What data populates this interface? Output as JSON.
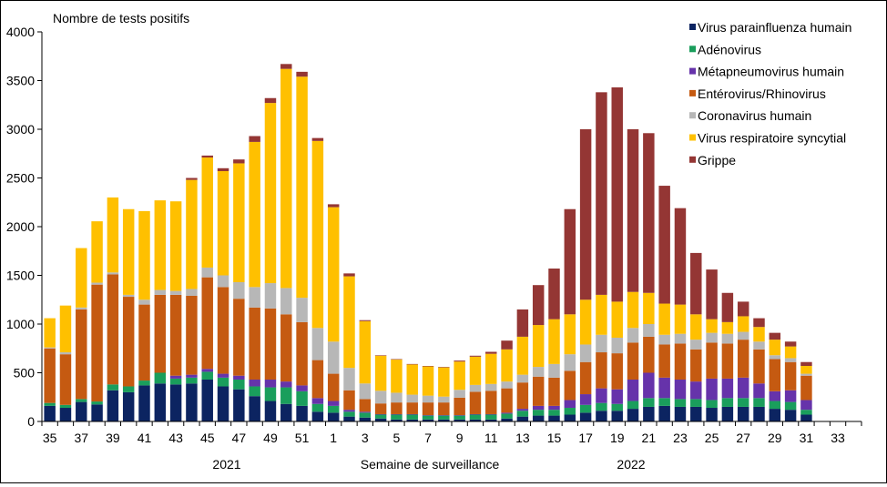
{
  "chart_data": {
    "type": "bar",
    "stacked": true,
    "title": "",
    "ylabel": "Nombre de tests positifs",
    "xlabel": "Semaine de surveillance",
    "year_labels": [
      "2021",
      "2022"
    ],
    "ylim": [
      0,
      4000
    ],
    "y_ticks": [
      0,
      500,
      1000,
      1500,
      2000,
      2500,
      3000,
      3500,
      4000
    ],
    "legend_position": "top-right",
    "grid": false,
    "categories": [
      "35",
      "36",
      "37",
      "38",
      "39",
      "40",
      "41",
      "42",
      "43",
      "44",
      "45",
      "46",
      "47",
      "48",
      "49",
      "50",
      "51",
      "52",
      "1",
      "2",
      "3",
      "4",
      "5",
      "6",
      "7",
      "8",
      "9",
      "10",
      "11",
      "12",
      "13",
      "14",
      "15",
      "16",
      "17",
      "18",
      "19",
      "20",
      "21",
      "22",
      "23",
      "24",
      "25",
      "26",
      "27",
      "28",
      "29",
      "30",
      "31",
      "32",
      "33",
      "34"
    ],
    "x_tick_labels": [
      "35",
      "37",
      "39",
      "41",
      "43",
      "45",
      "47",
      "49",
      "51",
      "1",
      "3",
      "5",
      "7",
      "9",
      "11",
      "13",
      "15",
      "17",
      "19",
      "21",
      "23",
      "25",
      "27",
      "29",
      "31",
      "33"
    ],
    "series": [
      {
        "name": "Virus parainfluenza humain",
        "color": "#0c2461",
        "values": [
          160,
          140,
          200,
          175,
          320,
          300,
          370,
          390,
          380,
          390,
          430,
          360,
          330,
          260,
          210,
          180,
          160,
          100,
          90,
          50,
          40,
          30,
          20,
          20,
          20,
          20,
          20,
          20,
          20,
          30,
          50,
          60,
          60,
          70,
          90,
          110,
          110,
          130,
          150,
          160,
          150,
          150,
          140,
          150,
          150,
          150,
          130,
          120,
          70,
          0,
          0,
          0
        ]
      },
      {
        "name": "Adénovirus",
        "color": "#1a9e5c",
        "values": [
          30,
          30,
          30,
          30,
          60,
          60,
          50,
          110,
          60,
          60,
          80,
          90,
          100,
          100,
          140,
          170,
          150,
          80,
          70,
          50,
          50,
          40,
          50,
          50,
          40,
          40,
          40,
          50,
          50,
          50,
          60,
          60,
          60,
          70,
          80,
          80,
          70,
          80,
          90,
          80,
          80,
          80,
          80,
          90,
          90,
          90,
          80,
          80,
          50,
          0,
          0,
          0
        ]
      },
      {
        "name": "Métapneumovirus humain",
        "color": "#6633aa",
        "values": [
          0,
          0,
          0,
          0,
          0,
          0,
          0,
          0,
          30,
          30,
          30,
          40,
          40,
          70,
          80,
          60,
          60,
          60,
          50,
          20,
          10,
          5,
          5,
          5,
          5,
          5,
          5,
          5,
          5,
          10,
          20,
          40,
          40,
          80,
          110,
          150,
          150,
          220,
          260,
          210,
          200,
          180,
          220,
          200,
          210,
          150,
          100,
          120,
          100,
          0,
          0,
          0
        ]
      },
      {
        "name": "Entérovirus/Rhinovirus",
        "color": "#c55a11",
        "values": [
          560,
          520,
          920,
          1200,
          1130,
          920,
          780,
          800,
          830,
          810,
          940,
          890,
          790,
          740,
          730,
          690,
          650,
          390,
          280,
          200,
          130,
          110,
          120,
          120,
          130,
          130,
          180,
          230,
          240,
          250,
          270,
          300,
          290,
          300,
          330,
          370,
          370,
          380,
          370,
          340,
          370,
          330,
          370,
          360,
          390,
          350,
          330,
          290,
          250,
          0,
          0,
          0
        ]
      },
      {
        "name": "Coronavirus humain",
        "color": "#b7b7b7",
        "values": [
          10,
          20,
          20,
          20,
          20,
          20,
          50,
          50,
          40,
          70,
          100,
          120,
          170,
          210,
          260,
          270,
          250,
          330,
          330,
          230,
          160,
          130,
          100,
          80,
          70,
          60,
          80,
          70,
          70,
          70,
          80,
          100,
          140,
          170,
          180,
          180,
          160,
          150,
          130,
          100,
          100,
          100,
          100,
          100,
          80,
          80,
          40,
          40,
          20,
          0,
          0,
          0
        ]
      },
      {
        "name": "Virus respiratoire syncytial",
        "color": "#ffc000",
        "values": [
          300,
          480,
          610,
          630,
          770,
          880,
          910,
          920,
          920,
          1120,
          1130,
          1070,
          1220,
          1490,
          1850,
          2250,
          2270,
          1920,
          1380,
          940,
          640,
          360,
          340,
          310,
          300,
          300,
          290,
          290,
          310,
          330,
          390,
          430,
          460,
          410,
          460,
          410,
          370,
          370,
          320,
          320,
          300,
          260,
          140,
          120,
          160,
          150,
          160,
          120,
          80,
          0,
          0,
          0
        ]
      },
      {
        "name": "Grippe",
        "color": "#943634",
        "values": [
          0,
          0,
          0,
          0,
          0,
          0,
          0,
          0,
          0,
          20,
          20,
          30,
          40,
          60,
          50,
          50,
          50,
          30,
          30,
          30,
          10,
          5,
          5,
          5,
          5,
          5,
          10,
          10,
          20,
          90,
          280,
          410,
          520,
          1080,
          1750,
          2080,
          2200,
          1670,
          1640,
          1210,
          990,
          630,
          510,
          300,
          150,
          90,
          70,
          50,
          40,
          0,
          0,
          0
        ]
      }
    ]
  }
}
